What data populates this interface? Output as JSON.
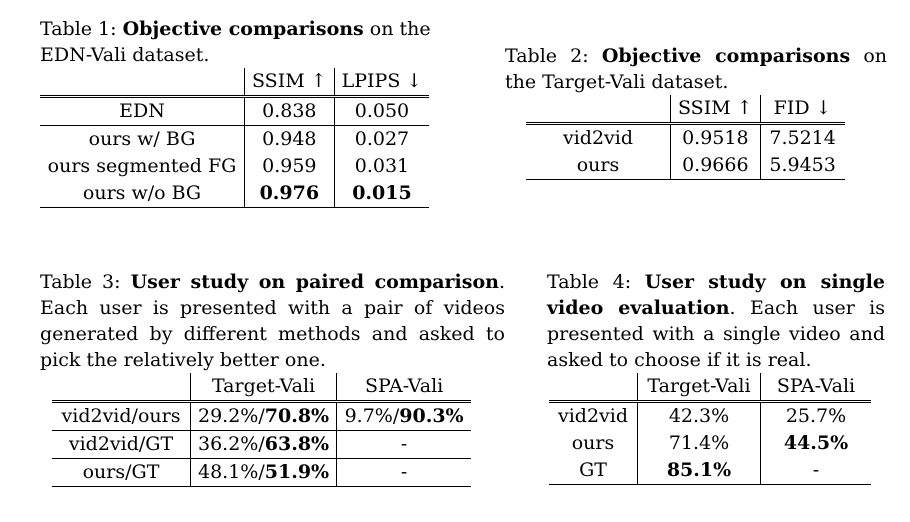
{
  "table1": {
    "label": "Table 1:",
    "title_bold": "Objective comparisons",
    "title_rest": " on the EDN-Vali dataset.",
    "headers": [
      "",
      "SSIM ↑",
      "LPIPS ↓"
    ],
    "rows": [
      [
        "EDN",
        "0.838",
        "0.050"
      ],
      [
        "ours w/ BG",
        "0.948",
        "0.027"
      ],
      [
        "ours segmented FG",
        "0.959",
        "0.031"
      ],
      [
        "ours w/o BG",
        "0.976",
        "0.015"
      ]
    ]
  },
  "table2": {
    "label": "Table 2:",
    "title_bold": "Objective comparisons",
    "title_rest": " on the Target-Vali dataset.",
    "headers": [
      "",
      "SSIM ↑",
      "FID ↓"
    ],
    "rows": [
      [
        "vid2vid",
        "0.9518",
        "7.5214"
      ],
      [
        "ours",
        "0.9666",
        "5.9453"
      ]
    ]
  },
  "table3": {
    "label": "Table 3:",
    "title_bold": "User study on paired comparison",
    "title_rest": ". Each user is presented with a pair of videos generated by different methods and asked to pick the relatively better one.",
    "headers": [
      "",
      "Target-Vali",
      "SPA-Vali"
    ],
    "rows": [
      {
        "name": "vid2vid/ours",
        "tv_a": "29.2%/",
        "tv_b": "70.8%",
        "sv_a": "9.7%/",
        "sv_b": "90.3%"
      },
      {
        "name": "vid2vid/GT",
        "tv_a": "36.2%/",
        "tv_b": "63.8%",
        "sv": "-"
      },
      {
        "name": "ours/GT",
        "tv_a": "48.1%/",
        "tv_b": "51.9%",
        "sv": "-"
      }
    ]
  },
  "table4": {
    "label": "Table 4:",
    "title_bold": "User study on single video evaluation",
    "title_rest": ". Each user is presented with a single video and asked to choose if it is real.",
    "headers": [
      "",
      "Target-Vali",
      "SPA-Vali"
    ],
    "rows": [
      [
        "vid2vid",
        "42.3%",
        "25.7%"
      ],
      [
        "ours",
        "71.4%",
        "44.5%"
      ],
      [
        "GT",
        "85.1%",
        "-"
      ]
    ]
  }
}
